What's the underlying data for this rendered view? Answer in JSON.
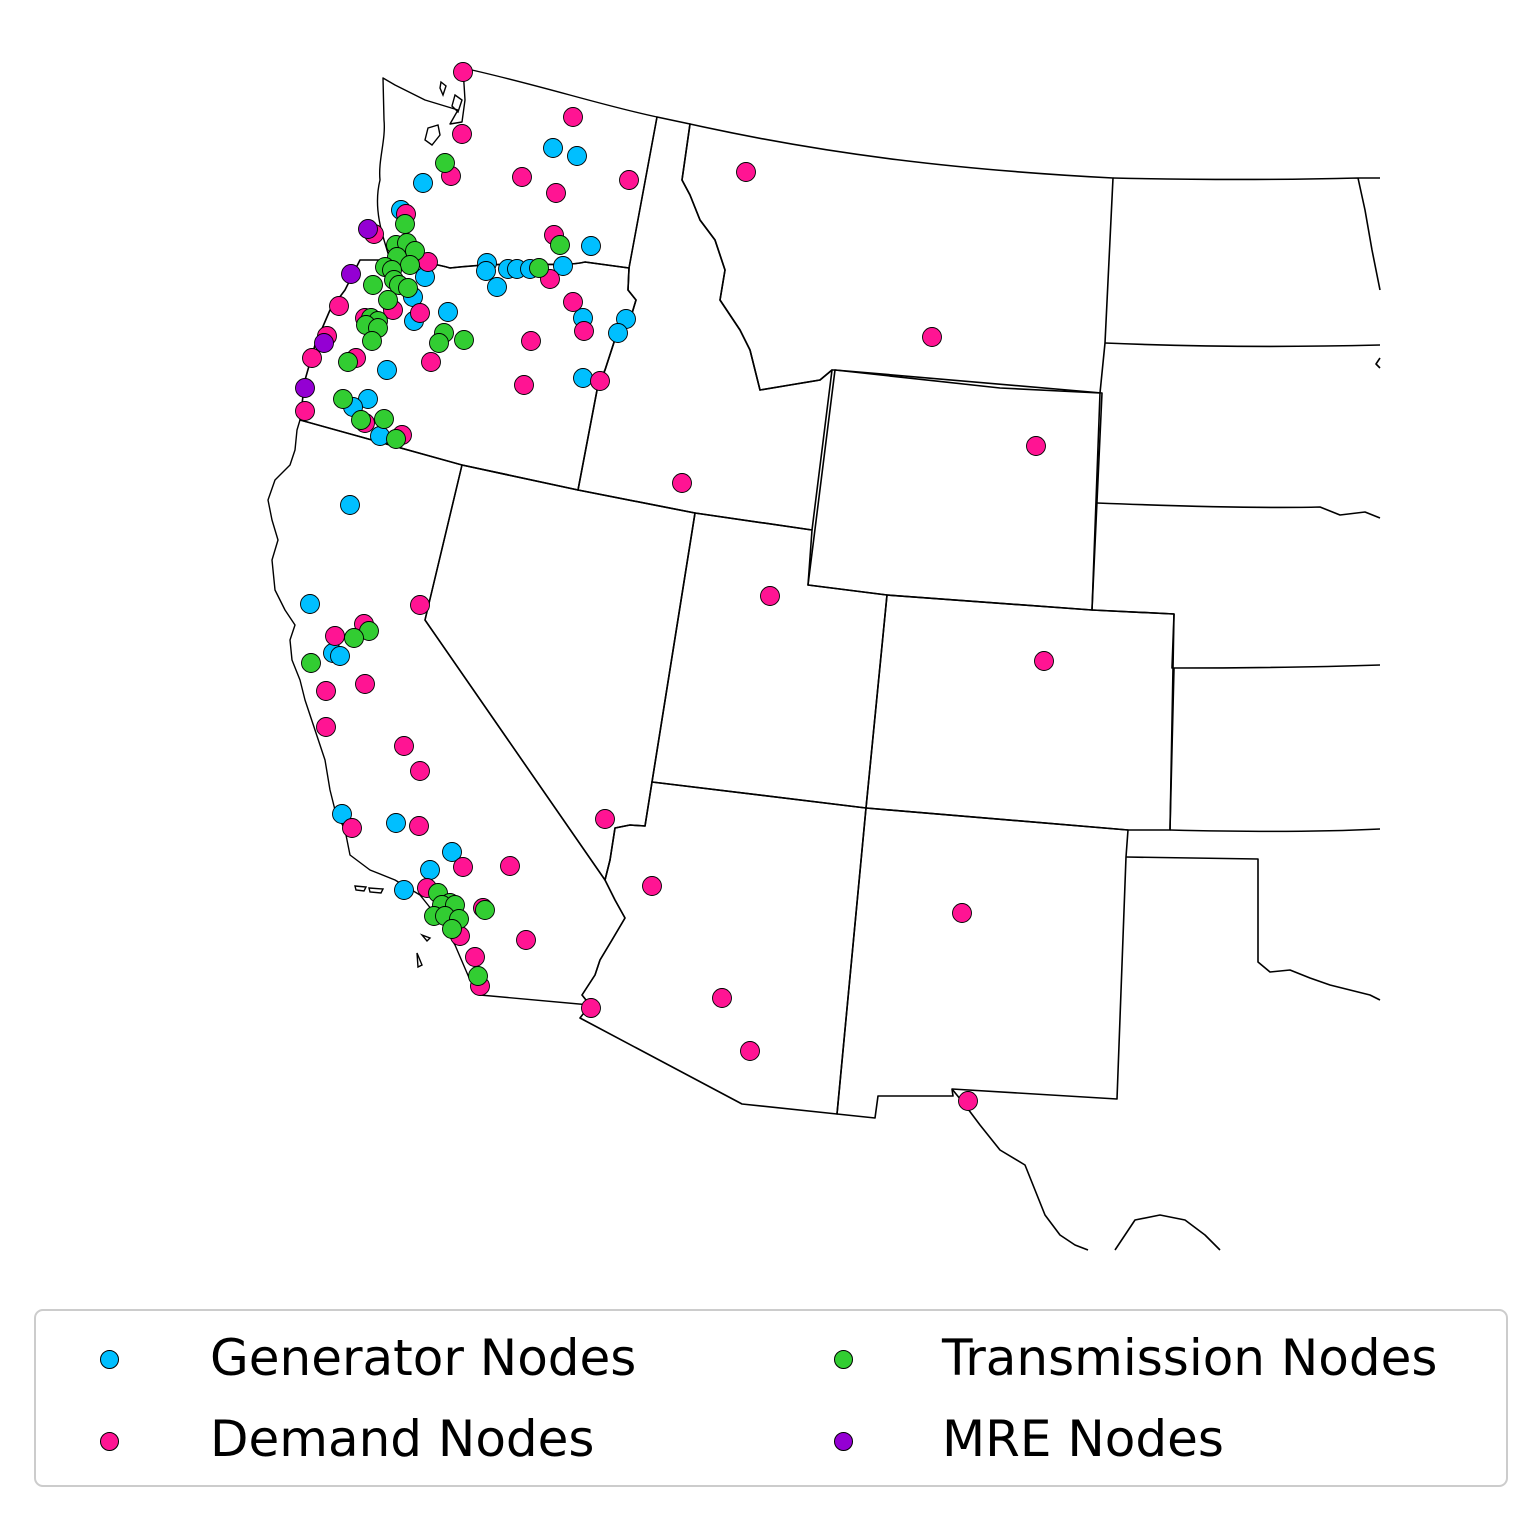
{
  "legend": {
    "generator": "Generator Nodes",
    "transmission": "Transmission Nodes",
    "demand": "Demand Nodes",
    "mre": "MRE Nodes"
  },
  "colors": {
    "generator": "#00bfff",
    "demand": "#ff1493",
    "transmission": "#32cd32",
    "mre": "#9400d3"
  }
}
